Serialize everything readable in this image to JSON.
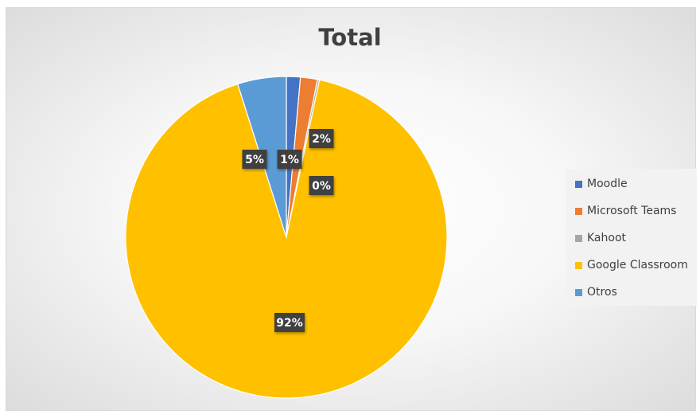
{
  "chart_data": {
    "type": "pie",
    "title": "Total",
    "categories": [
      "Moodle",
      "Microsoft Teams",
      "Kahoot",
      "Google Classroom",
      "Otros"
    ],
    "values": [
      1.4,
      1.7,
      0.2,
      91.8,
      4.9
    ],
    "data_labels": [
      "1%",
      "2%",
      "0%",
      "92%",
      "5%"
    ],
    "colors": [
      "#4472c4",
      "#ed7d31",
      "#a5a5a5",
      "#ffc000",
      "#5b9bd5"
    ],
    "legend_position": "right"
  }
}
